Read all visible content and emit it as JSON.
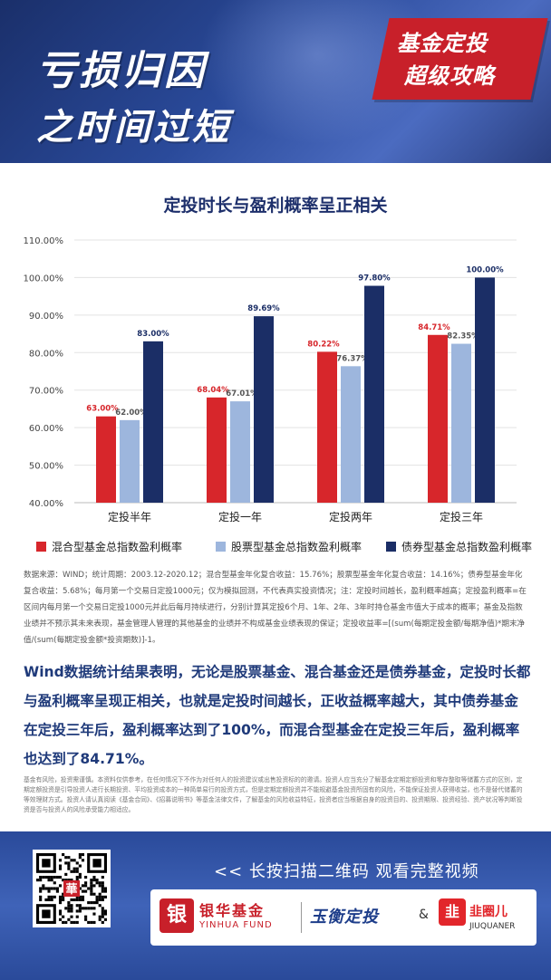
{
  "header": {
    "title_line1": "亏损归因",
    "title_line2": "之时间过短",
    "badge_line1": "基金定投",
    "badge_line2": "超级攻略"
  },
  "chart_data": {
    "type": "bar",
    "title": "定投时长与盈利概率呈正相关",
    "categories": [
      "定投半年",
      "定投一年",
      "定投两年",
      "定投三年"
    ],
    "series": [
      {
        "name": "混合型基金总指数盈利概率",
        "values": [
          63.0,
          68.04,
          80.22,
          84.71
        ],
        "labels": [
          "63.00%",
          "68.04%",
          "80.22%",
          "84.71%"
        ],
        "color": "#d7262b"
      },
      {
        "name": "股票型基金总指数盈利概率",
        "values": [
          62.0,
          67.01,
          76.37,
          82.35
        ],
        "labels": [
          "62.00%",
          "67.01%",
          "76.37%",
          "82.35%"
        ],
        "color": "#9db6dd"
      },
      {
        "name": "债券型基金总指数盈利概率",
        "values": [
          83.0,
          89.69,
          97.8,
          100.0
        ],
        "labels": [
          "83.00%",
          "89.69%",
          "97.80%",
          "100.00%"
        ],
        "color": "#1b2e66"
      }
    ],
    "yticks": [
      "110.00%",
      "100.00%",
      "90.00%",
      "80.00%",
      "70.00%",
      "60.00%",
      "50.00%",
      "40.00%"
    ],
    "ylim": [
      40,
      110
    ],
    "grid": true,
    "legend": "bottom"
  },
  "notes": "数据来源：WIND；统计周期：2003.12-2020.12；混合型基金年化复合收益：15.76%；股票型基金年化复合收益：14.16%；债券型基金年化复合收益：5.68%；每月第一个交易日定投1000元；仅为模拟回测，不代表真实投资情况；注：定投时间越长，盈利概率越高；定投盈利概率=在区间内每月第一个交易日定投1000元并此后每月持续进行，分别计算其定投6个月、1年、2年、3年时持仓基金市值大于成本的概率；基金及指数业绩并不预示其未来表现，基金管理人管理的其他基金的业绩并不构成基金业绩表现的保证；定投收益率=[(sum(每期定投金额/每期净值)*期末净值/(sum(每期定投金额*投资期数)]-1。",
  "conclusion": "Wind数据统计结果表明，无论是股票基金、混合基金还是债券基金，定投时长都与盈利概率呈现正相关，也就是定投时间越长，正收益概率越大，其中债券基金在定投三年后，盈利概率达到了100%，而混合型基金在定投三年后，盈利概率也达到了84.71%。",
  "disclaimer": "基金有风险，投资需谨慎。本资料仅供参考，在任何情况下不作为对任何人的投资建议或出售投资标的的邀请。投资人应当充分了解基金定期定额投资和零存整取等储蓄方式的区别，定期定额投资是引导投资人进行长期投资、平均投资成本的一种简单易行的投资方式，但是定期定额投资并不能规避基金投资所固有的风险，不能保证投资人获得收益，也不是替代储蓄的等效理财方式。投资人请认真阅读《基金合同》、《招募说明书》等基金法律文件，了解基金的风险收益特征，投资者应当根据自身的投资目的、投资期限、投资经验、资产状况等判断投资是否与投资人的风险承受能力相适应。",
  "footer": {
    "scan_text": "<< 长按扫描二维码 观看完整视频",
    "qr_center": "華",
    "yinhua_mark": "银",
    "yinhua_cn": "银华基金",
    "yinhua_en": "YINHUA FUND",
    "yuheng": "玉衡定投",
    "amp": "&",
    "jq_mark": "韭",
    "jq_cn": "韭圈儿",
    "jq_en": "JIUQUANER"
  },
  "colors": {
    "header_bg": "#1a2f6a",
    "badge": "#c8202a",
    "title_blue": "#1d2f6b",
    "footer_bg": "#2a4a9a"
  }
}
